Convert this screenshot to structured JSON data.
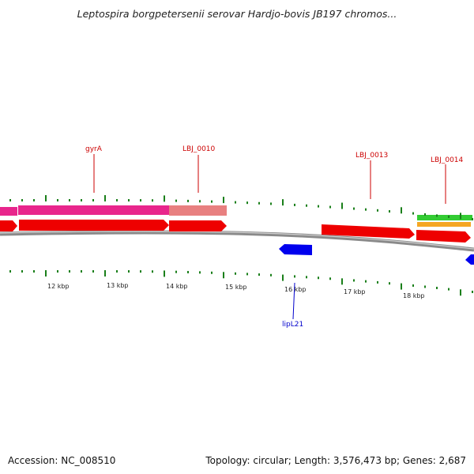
{
  "title": "Leptospira borgpetersenii serovar Hardjo-bovis JB197 chromos...",
  "footer": {
    "accession": "Accession: NC_008510",
    "summary": "Topology: circular; Length: 3,576,473 bp; Genes: 2,687"
  },
  "colors": {
    "backbone": "#8a8a8a",
    "tick": "#1a7f1a",
    "forward_cds": "#ee0000",
    "reverse_cds": "#0000ee",
    "label_forward": "#cc0000",
    "label_reverse": "#0000cc",
    "feature_pink": "#e8268c",
    "feature_salmon": "#e88080",
    "feature_green": "#33cc33",
    "feature_orange": "#f5a623"
  },
  "scale": {
    "unit": "kbp",
    "ticks": [
      {
        "label": "12 kbp"
      },
      {
        "label": "13 kbp"
      },
      {
        "label": "14 kbp"
      },
      {
        "label": "15 kbp"
      },
      {
        "label": "16 kbp"
      },
      {
        "label": "17 kbp"
      },
      {
        "label": "18 kbp"
      }
    ]
  },
  "genes": [
    {
      "name": "gyrA",
      "strand": "forward"
    },
    {
      "name": "LBJ_0010",
      "strand": "forward"
    },
    {
      "name": "LBJ_0013",
      "strand": "forward"
    },
    {
      "name": "LBJ_0014",
      "strand": "forward"
    },
    {
      "name": "lipL21",
      "strand": "reverse"
    }
  ]
}
